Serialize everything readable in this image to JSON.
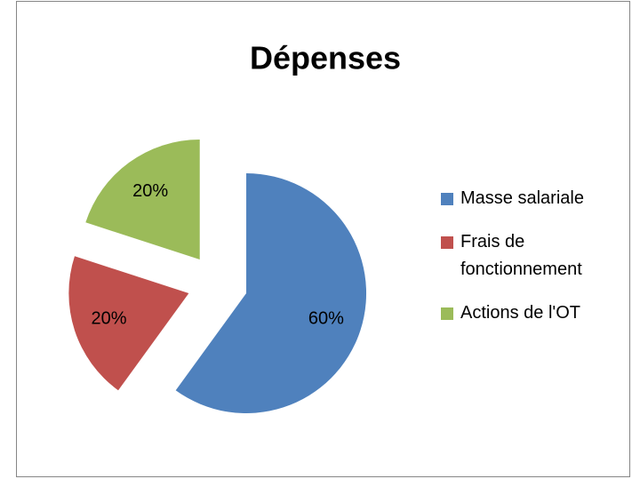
{
  "chart_data": {
    "type": "pie",
    "title": "Dépenses",
    "categories": [
      "Masse salariale",
      "Frais de fonctionnement",
      "Actions de l'OT"
    ],
    "values": [
      60,
      20,
      20
    ],
    "value_labels": [
      "60%",
      "20%",
      "20%"
    ],
    "colors": [
      "#4f81bd",
      "#c0504d",
      "#9bbb59"
    ],
    "exploded": true,
    "legend": "right"
  }
}
